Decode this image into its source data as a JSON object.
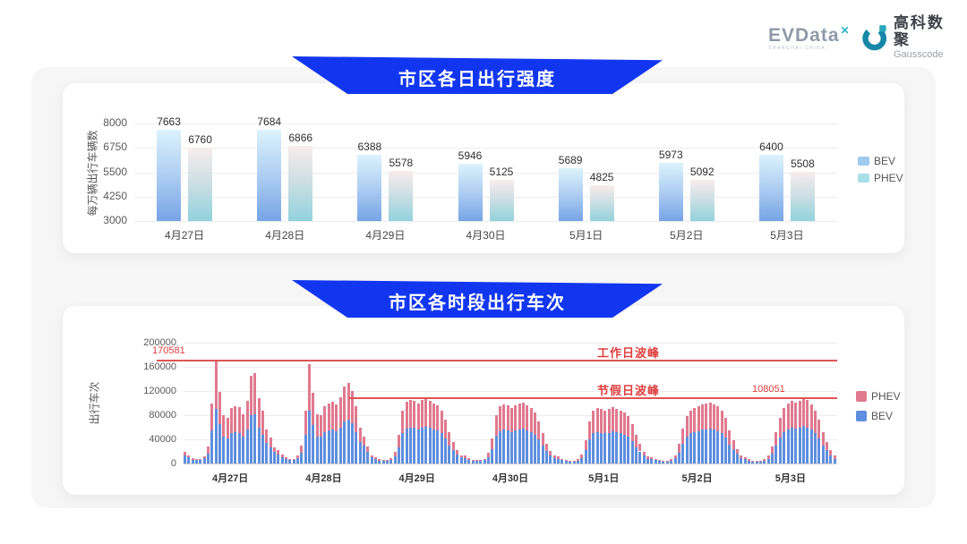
{
  "header": {
    "evdata_name": "EVData",
    "evdata_mark": "✕",
    "evdata_sub": "SHANGHAI CHINA",
    "gausscode_cn": "高科数聚",
    "gausscode_en": "Gausscode"
  },
  "colors": {
    "banner_blue": "#1236f0",
    "chart1_bev_legend": "#9ecbee",
    "chart1_phev_legend": "#a8dfe9",
    "chart2_bev": "#5e8ede",
    "chart2_phev": "#e0798f",
    "annotation_red": "#e03e3e"
  },
  "chart_data": [
    {
      "type": "bar",
      "title": "市区各日出行强度",
      "ylabel": "每万辆出行车辆数",
      "categories": [
        "4月27日",
        "4月28日",
        "4月29日",
        "4月30日",
        "5月1日",
        "5月2日",
        "5月3日"
      ],
      "series": [
        {
          "name": "BEV",
          "values": [
            7663,
            7684,
            6388,
            5946,
            5689,
            5973,
            6400
          ]
        },
        {
          "name": "PHEV",
          "values": [
            6760,
            6866,
            5578,
            5125,
            4825,
            5092,
            5508
          ]
        }
      ],
      "legend": [
        "BEV",
        "PHEV"
      ],
      "ylim": [
        3000,
        8000
      ],
      "yticks": [
        3000,
        4250,
        5500,
        6750,
        8000
      ],
      "grid": true,
      "legend_position": "right"
    },
    {
      "type": "bar",
      "stacked": true,
      "title": "市区各时段出行车次",
      "ylabel": "出行车次",
      "categories": [
        "4月27日",
        "4月28日",
        "4月29日",
        "4月30日",
        "5月1日",
        "5月2日",
        "5月3日"
      ],
      "hours_per_day": 24,
      "series": [
        {
          "name": "BEV",
          "color": "#5e8ede",
          "days": [
            [
              14000,
              10000,
              6500,
              5500,
              5500,
              8500,
              17000,
              55000,
              91000,
              65000,
              44000,
              42000,
              51000,
              52000,
              51000,
              45000,
              57000,
              80000,
              82000,
              59000,
              48000,
              34000,
              26000,
              19000
            ],
            [
              15000,
              10000,
              7000,
              5500,
              5500,
              9000,
              18000,
              48000,
              88000,
              64000,
              45000,
              44000,
              52000,
              55000,
              56000,
              54000,
              60000,
              70000,
              73000,
              66000,
              52000,
              36000,
              30000,
              19000
            ],
            [
              10000,
              7000,
              5000,
              4000,
              4000,
              6000,
              12000,
              27000,
              50000,
              58000,
              60000,
              59000,
              57000,
              60000,
              61000,
              59000,
              57000,
              55000,
              50000,
              41000,
              30000,
              22000,
              15000,
              10000
            ],
            [
              9000,
              6000,
              4000,
              4000,
              4000,
              5500,
              11000,
              24000,
              46000,
              54000,
              56000,
              55000,
              52000,
              55000,
              57000,
              58000,
              55000,
              52000,
              48000,
              40000,
              29000,
              21000,
              14000,
              9000
            ],
            [
              8000,
              6000,
              4000,
              3500,
              3500,
              5000,
              9000,
              22000,
              40000,
              50000,
              52000,
              51000,
              50000,
              51000,
              53000,
              52000,
              50000,
              48000,
              44000,
              37000,
              27000,
              20000,
              13000,
              8000
            ],
            [
              8000,
              6000,
              4000,
              3500,
              3500,
              5000,
              9000,
              18000,
              33000,
              44000,
              50000,
              52000,
              54000,
              56000,
              57000,
              58000,
              56000,
              54000,
              50000,
              43000,
              31000,
              24000,
              16000,
              9000
            ],
            [
              7000,
              5000,
              3500,
              3500,
              3500,
              5000,
              8000,
              16000,
              30000,
              43000,
              52000,
              57000,
              59000,
              58000,
              59000,
              62000,
              60000,
              56000,
              50000,
              41000,
              30000,
              22000,
              14000,
              8000
            ]
          ]
        },
        {
          "name": "PHEV",
          "color": "#e0798f",
          "days": [
            [
              6000,
              4000,
              2500,
              2500,
              2500,
              3500,
              11000,
              45000,
              79581,
              54000,
              36000,
              34000,
              41000,
              43000,
              42000,
              37000,
              47000,
              65000,
              67000,
              49000,
              40000,
              22000,
              17000,
              8000
            ],
            [
              7000,
              5000,
              3000,
              2500,
              2500,
              4000,
              12000,
              40000,
              76000,
              53000,
              37000,
              36000,
              43000,
              45000,
              46000,
              44000,
              50000,
              58000,
              61000,
              54000,
              43000,
              24000,
              15000,
              9000
            ],
            [
              4000,
              3000,
              2000,
              2000,
              2000,
              3000,
              8000,
              21000,
              38000,
              44000,
              45000,
              44000,
              43000,
              45000,
              47000,
              45000,
              43000,
              41000,
              38000,
              31000,
              22000,
              13000,
              7000,
              4000
            ],
            [
              4000,
              3000,
              2000,
              2000,
              2000,
              2500,
              7000,
              18000,
              34000,
              41000,
              42000,
              41000,
              40000,
              42000,
              43000,
              43000,
              41000,
              40000,
              37000,
              30000,
              21000,
              12000,
              7000,
              4000
            ],
            [
              4000,
              2000,
              2000,
              1500,
              1500,
              2000,
              6000,
              16000,
              30000,
              38000,
              40000,
              39000,
              38000,
              39000,
              40000,
              39000,
              38000,
              37000,
              34000,
              28000,
              21000,
              12000,
              7000,
              4000
            ],
            [
              3000,
              2000,
              2000,
              1500,
              1500,
              2000,
              5000,
              14000,
              25000,
              34000,
              38000,
              40000,
              41000,
              42000,
              43000,
              43000,
              42000,
              41000,
              38000,
              32000,
              24000,
              14000,
              8000,
              5000
            ],
            [
              3000,
              2000,
              1500,
              1500,
              1500,
              2000,
              5000,
              12000,
              22000,
              32000,
              40000,
              43000,
              44000,
              43000,
              45000,
              46051,
              45000,
              42000,
              38000,
              31000,
              22000,
              13000,
              8000,
              5000
            ]
          ]
        }
      ],
      "legend": [
        "PHEV",
        "BEV"
      ],
      "ylim": [
        0,
        200000
      ],
      "yticks": [
        0,
        40000,
        80000,
        120000,
        160000,
        200000
      ],
      "annotations": {
        "workday_peak": {
          "label": "工作日波峰",
          "value": 170581,
          "value_label": "170581"
        },
        "holiday_peak": {
          "label": "节假日波峰",
          "value": 108051,
          "value_label": "108051"
        }
      },
      "grid": true,
      "legend_position": "right"
    }
  ]
}
